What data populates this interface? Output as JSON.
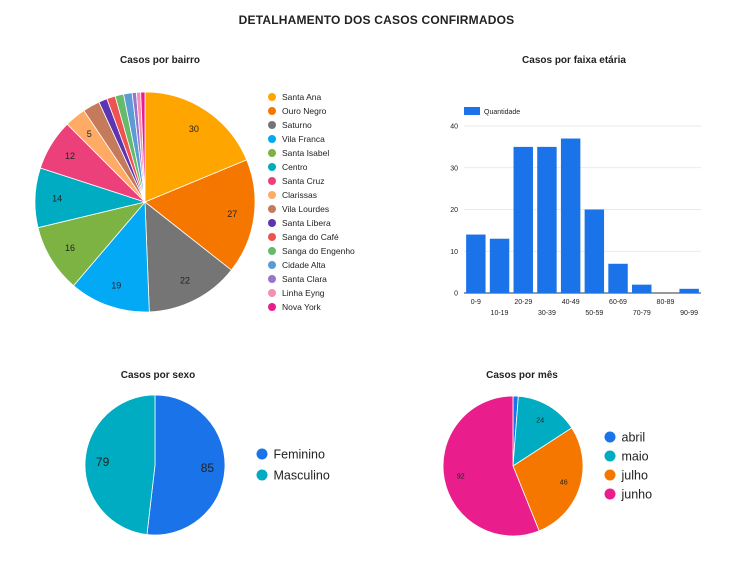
{
  "dashboard": {
    "title": "DETALHAMENTO DOS CASOS CONFIRMADOS"
  },
  "chart_data": [
    {
      "type": "pie",
      "title": "Casos por bairro",
      "legend_position": "right",
      "categories": [
        "Santa Ana",
        "Ouro Negro",
        "Saturno",
        "Vila Franca",
        "Santa Isabel",
        "Centro",
        "Santa Cruz",
        "Clarissas",
        "Vila Lourdes",
        "Santa Líbera",
        "Sanga do Café",
        "Sanga do Engenho",
        "Cidade Alta",
        "Santa Clara",
        "Linha Eyng",
        "Nova York"
      ],
      "values": [
        30,
        27,
        22,
        19,
        16,
        14,
        12,
        5,
        4,
        2,
        2,
        2,
        2,
        1,
        1,
        1
      ],
      "colors": [
        "#ffa500",
        "#f57700",
        "#757575",
        "#03a9f4",
        "#7cb342",
        "#00acc1",
        "#ec407a",
        "#ffab66",
        "#c67a5c",
        "#5e35b1",
        "#ef5350",
        "#66bb6a",
        "#5c9bd5",
        "#9575cd",
        "#f48fb1",
        "#e91e8c"
      ]
    },
    {
      "type": "bar",
      "title": "Casos por faixa etária",
      "legend_position": "top-left",
      "categories": [
        "0-9",
        "10-19",
        "20-29",
        "30-39",
        "40-49",
        "50-59",
        "60-69",
        "70-79",
        "80-89",
        "90-99"
      ],
      "series": [
        {
          "name": "Quantidade",
          "values": [
            14,
            13,
            35,
            35,
            37,
            20,
            7,
            2,
            0,
            1
          ],
          "color": "#1a73e8"
        }
      ],
      "ylim": [
        0,
        40
      ],
      "yticks": [
        0,
        10,
        20,
        30,
        40
      ],
      "grid": true
    },
    {
      "type": "pie",
      "title": "Casos por sexo",
      "legend_position": "right",
      "categories": [
        "Feminino",
        "Masculino"
      ],
      "values": [
        85,
        79
      ],
      "colors": [
        "#1a73e8",
        "#00acc1"
      ]
    },
    {
      "type": "pie",
      "title": "Casos por mês",
      "legend_position": "right",
      "categories": [
        "abril",
        "maio",
        "julho",
        "junho"
      ],
      "values": [
        2,
        24,
        46,
        92
      ],
      "colors": [
        "#1a73e8",
        "#00acc1",
        "#f57700",
        "#e91e8c"
      ]
    }
  ]
}
